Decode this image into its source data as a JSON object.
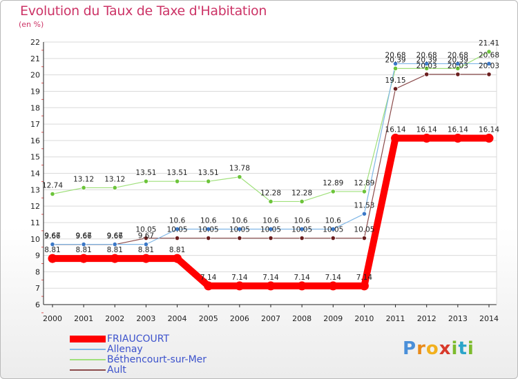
{
  "header": {
    "title": "Evolution du Taux de Taxe d'Habitation",
    "unit": "(en %)"
  },
  "logo": {
    "text": "Proxiti"
  },
  "chart_data": {
    "type": "line",
    "title": "Evolution du Taux de Taxe d'Habitation",
    "ylabel": "(en %)",
    "xlabel": "",
    "ylim": [
      6,
      22
    ],
    "yticks": [
      6,
      7,
      8,
      9,
      10,
      11,
      12,
      13,
      14,
      15,
      16,
      17,
      18,
      19,
      20,
      21,
      22
    ],
    "x": [
      "2000",
      "2001",
      "2002",
      "2003",
      "2004",
      "2005",
      "2006",
      "2007",
      "2008",
      "2009",
      "2010",
      "2011",
      "2012",
      "2013",
      "2014"
    ],
    "grid": "horizontal",
    "legend_position": "bottom-left",
    "series": [
      {
        "name": "FRIAUCOURT",
        "color": "#ff0000",
        "marker": "#ff0000",
        "values": [
          8.81,
          8.81,
          8.81,
          8.81,
          8.81,
          7.14,
          7.14,
          7.14,
          7.14,
          7.14,
          7.14,
          16.14,
          16.14,
          16.14,
          16.14
        ],
        "labels": [
          "8.81",
          "8.81",
          "8.81",
          "8.81",
          "8.81",
          "7.14",
          "7.14",
          "7.14",
          "7.14",
          "7.14",
          "7.14",
          "16.14",
          "16.14",
          "16.14",
          "16.14"
        ]
      },
      {
        "name": "Allenay",
        "color": "#7fb6e6",
        "marker": "#3b78c7",
        "values": [
          9.67,
          9.67,
          9.67,
          9.67,
          10.6,
          10.6,
          10.6,
          10.6,
          10.6,
          10.6,
          11.53,
          20.68,
          20.68,
          20.68,
          20.68
        ],
        "labels": [
          "9.67",
          "9.67",
          "9.67",
          "9.67",
          "10.6",
          "10.6",
          "10.6",
          "10.6",
          "10.6",
          "10.6",
          "11.53",
          "20.68",
          "20.68",
          "20.68",
          "20.68"
        ]
      },
      {
        "name": "Béthencourt-sur-Mer",
        "color": "#9fe07a",
        "marker": "#6cc43a",
        "values": [
          12.74,
          13.12,
          13.12,
          13.51,
          13.51,
          13.51,
          13.78,
          12.28,
          12.28,
          12.89,
          12.89,
          20.39,
          20.39,
          20.39,
          21.41
        ],
        "labels": [
          "12.74",
          "13.12",
          "13.12",
          "13.51",
          "13.51",
          "13.51",
          "13.78",
          "12.28",
          "12.28",
          "12.89",
          "12.89",
          "20.39",
          "20.39",
          "20.39",
          "21.41"
        ]
      },
      {
        "name": "Ault",
        "color": "#8a4a4a",
        "marker": "#6b1e1e",
        "values": [
          9.66,
          9.66,
          9.66,
          10.05,
          10.05,
          10.05,
          10.05,
          10.05,
          10.05,
          10.05,
          10.05,
          19.15,
          20.03,
          20.03,
          20.03
        ],
        "labels": [
          "9.66",
          "9.66",
          "9.66",
          "10.05",
          "10.05",
          "10.05",
          "10.05",
          "10.05",
          "10.05",
          "10.05",
          "10.05",
          "19.15",
          "20.03",
          "20.03",
          "20.03"
        ]
      }
    ]
  }
}
